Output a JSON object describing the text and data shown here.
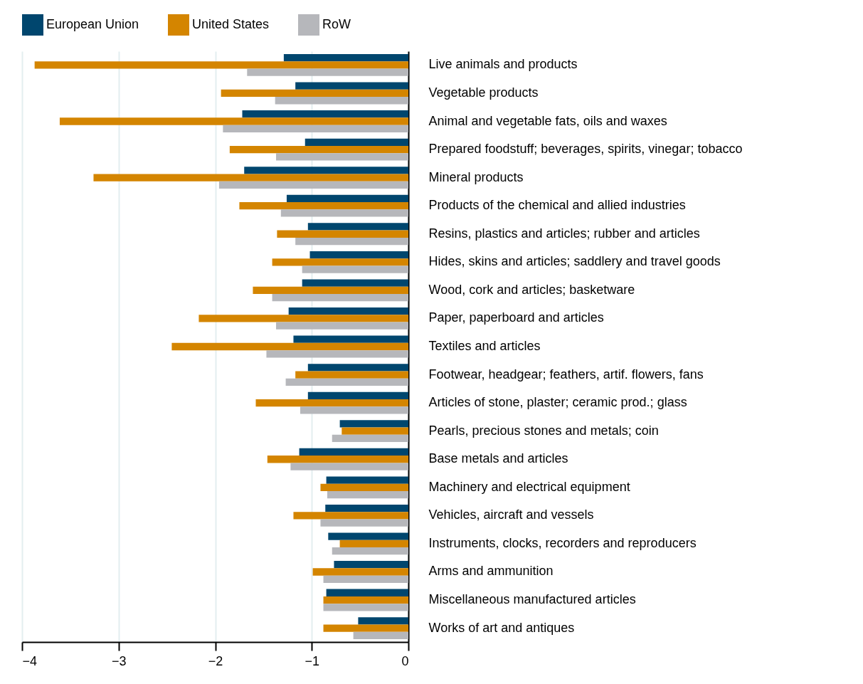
{
  "chart_data": {
    "type": "bar",
    "orientation": "horizontal",
    "categories": [
      "Live animals and products",
      "Vegetable products",
      "Animal and vegetable fats, oils and waxes",
      "Prepared foodstuff; beverages, spirits, vinegar; tobacco",
      "Mineral products",
      "Products of the chemical and allied industries",
      "Resins, plastics and articles; rubber and articles",
      "Hides, skins and articles; saddlery and travel goods",
      "Wood, cork and articles; basketware",
      "Paper, paperboard and articles",
      "Textiles and articles",
      "Footwear, headgear; feathers, artif. flowers, fans",
      "Articles of stone, plaster; ceramic prod.; glass",
      "Pearls, precious stones and metals; coin",
      "Base metals and articles",
      "Machinery and electrical equipment",
      "Vehicles, aircraft and vessels",
      "Instruments, clocks, recorders and reproducers",
      "Arms and ammunition",
      "Miscellaneous manufactured articles",
      "Works of art and antiques"
    ],
    "series": [
      {
        "name": "European Union",
        "color": "#00466e",
        "values": [
          -1.29,
          -1.17,
          -1.72,
          -1.07,
          -1.7,
          -1.26,
          -1.04,
          -1.02,
          -1.1,
          -1.24,
          -1.19,
          -1.04,
          -1.04,
          -0.71,
          -1.13,
          -0.85,
          -0.86,
          -0.83,
          -0.77,
          -0.85,
          -0.52
        ]
      },
      {
        "name": "United States",
        "color": "#d48500",
        "values": [
          -3.87,
          -1.94,
          -3.61,
          -1.85,
          -3.26,
          -1.75,
          -1.36,
          -1.41,
          -1.61,
          -2.17,
          -2.45,
          -1.17,
          -1.58,
          -0.69,
          -1.46,
          -0.91,
          -1.19,
          -0.71,
          -0.99,
          -0.88,
          -0.88
        ]
      },
      {
        "name": "RoW",
        "color": "#b6b7bb",
        "values": [
          -1.67,
          -1.38,
          -1.92,
          -1.37,
          -1.96,
          -1.32,
          -1.17,
          -1.1,
          -1.41,
          -1.37,
          -1.47,
          -1.27,
          -1.12,
          -0.79,
          -1.22,
          -0.84,
          -0.91,
          -0.79,
          -0.88,
          -0.88,
          -0.57
        ]
      }
    ],
    "xlim": [
      -4,
      0
    ],
    "xticks": [
      -4,
      -3,
      -2,
      -1,
      0
    ],
    "grid": true,
    "legend": "top"
  }
}
